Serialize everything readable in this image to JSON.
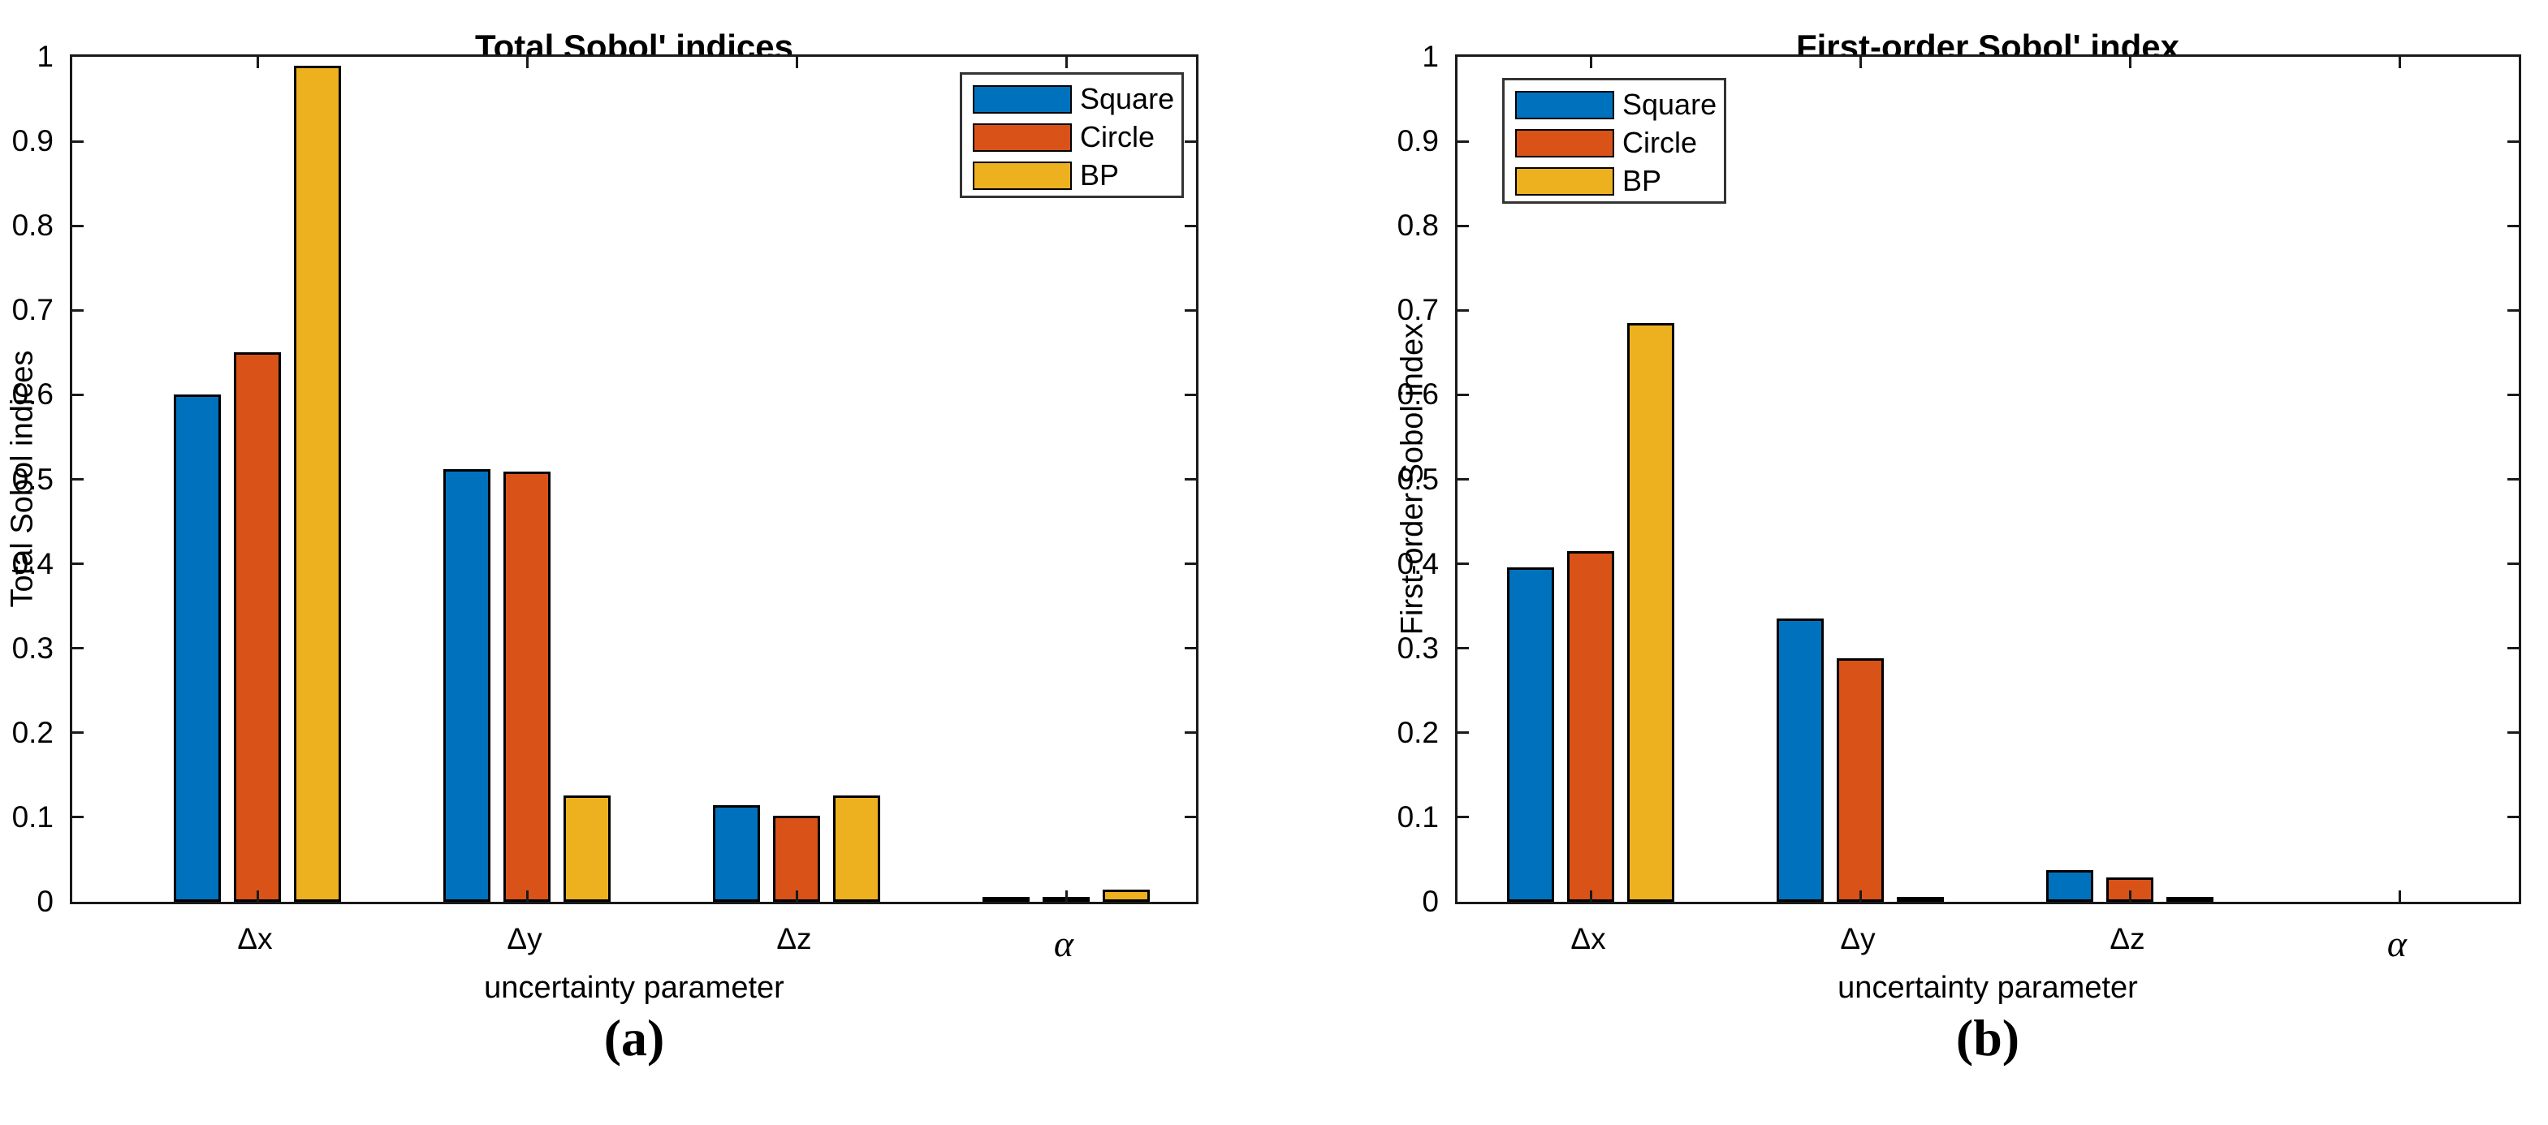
{
  "figure": {
    "background": "#ffffff",
    "axis_color": "#1a1a1a",
    "bar_outline_color": "#000000"
  },
  "chart_data": [
    {
      "type": "bar",
      "title": "Total Sobol' indices",
      "xlabel": "uncertainty parameter",
      "ylabel": "Total Sobol indices",
      "caption": "(a)",
      "categories": [
        "Δx",
        "Δy",
        "Δz",
        "α"
      ],
      "series": [
        {
          "name": "Square",
          "color": "#0072BD",
          "values": [
            0.6,
            0.512,
            0.114,
            0.004
          ]
        },
        {
          "name": "Circle",
          "color": "#D95319",
          "values": [
            0.65,
            0.509,
            0.102,
            0.002
          ]
        },
        {
          "name": "BP",
          "color": "#EDB120",
          "values": [
            0.989,
            0.126,
            0.126,
            0.014
          ]
        }
      ],
      "ylim": [
        0,
        1
      ],
      "yticks_labels": [
        "0",
        "0.1",
        "0.2",
        "0.3",
        "0.4",
        "0.5",
        "0.6",
        "0.7",
        "0.8",
        "0.9",
        "1"
      ],
      "grid": false,
      "legend_position": "top-right"
    },
    {
      "type": "bar",
      "title": "First-order Sobol' index",
      "xlabel": "uncertainty parameter",
      "ylabel": "First-order Sobol index",
      "caption": "(b)",
      "categories": [
        "Δx",
        "Δy",
        "Δz",
        "α"
      ],
      "series": [
        {
          "name": "Square",
          "color": "#0072BD",
          "values": [
            0.396,
            0.335,
            0.037,
            0
          ]
        },
        {
          "name": "Circle",
          "color": "#D95319",
          "values": [
            0.415,
            0.288,
            0.029,
            0
          ]
        },
        {
          "name": "BP",
          "color": "#EDB120",
          "values": [
            0.685,
            0.005,
            0.002,
            0
          ]
        }
      ],
      "ylim": [
        0,
        1
      ],
      "yticks_labels": [
        "0",
        "0.1",
        "0.2",
        "0.3",
        "0.4",
        "0.5",
        "0.6",
        "0.7",
        "0.8",
        "0.9",
        "1"
      ],
      "grid": false,
      "legend_position": "top-left"
    }
  ]
}
